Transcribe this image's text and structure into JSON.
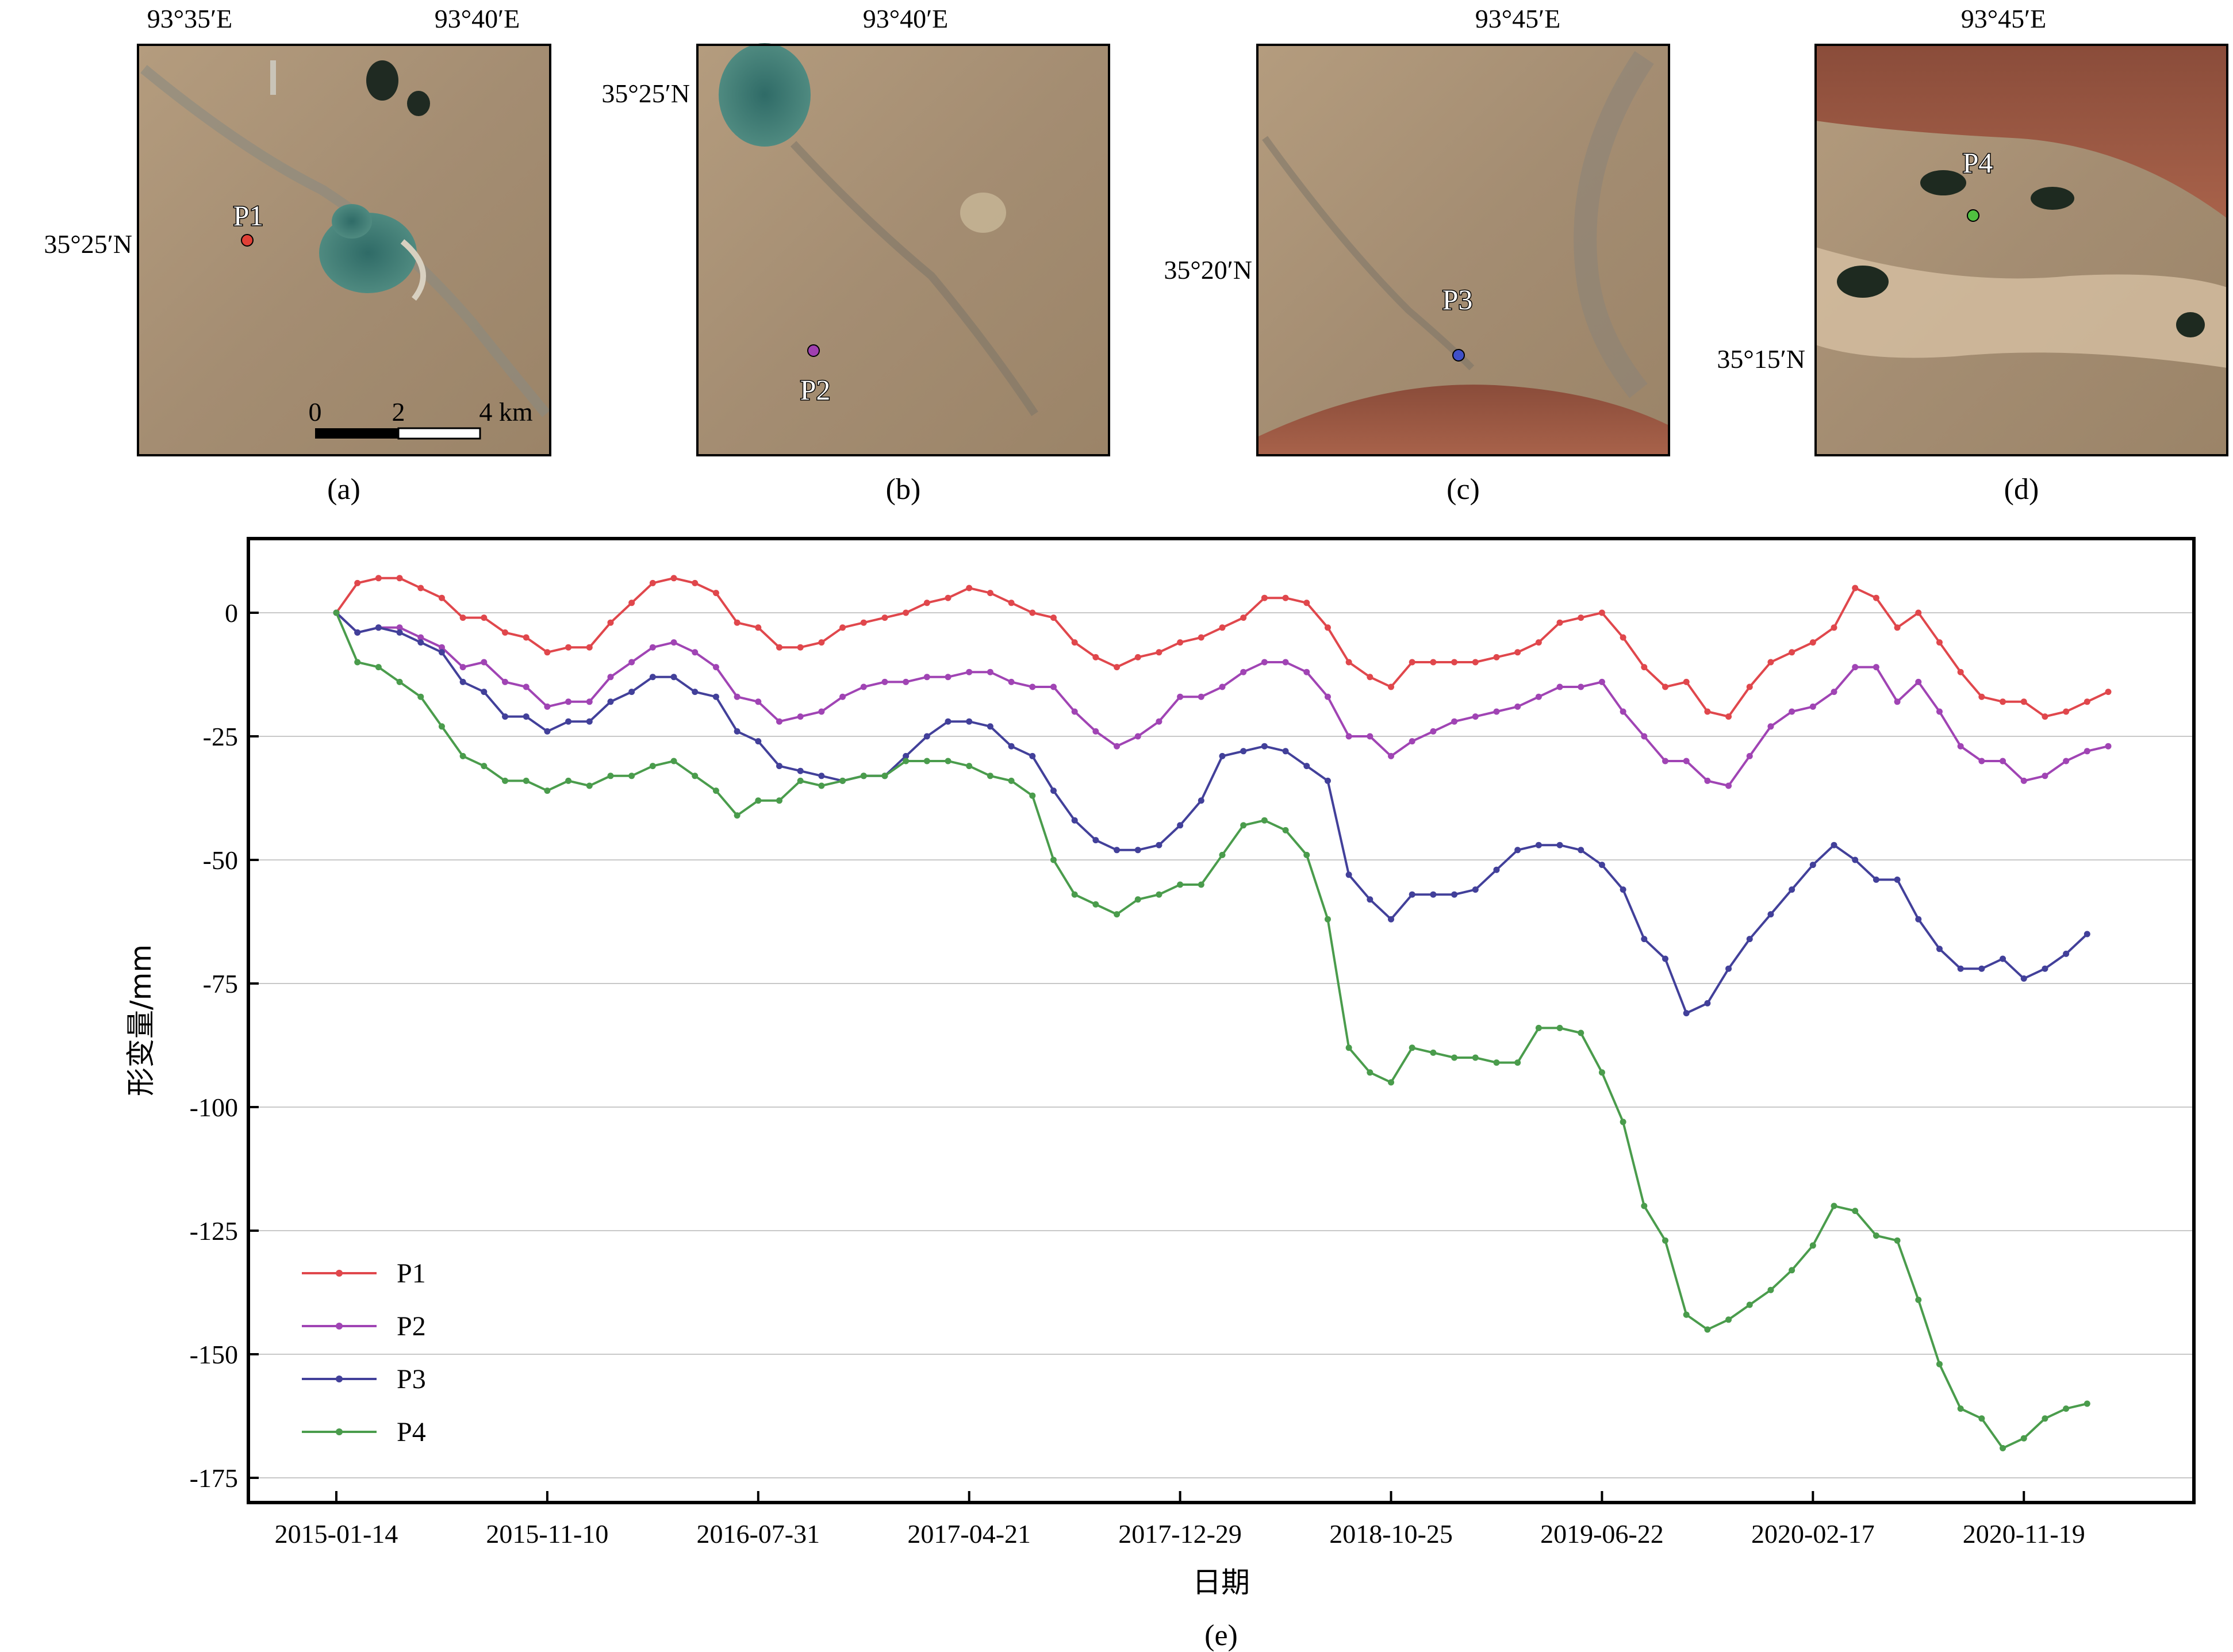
{
  "panels": [
    {
      "id": "a",
      "caption": "(a)",
      "top_labels": [
        "93°35′E",
        "93°40′E"
      ],
      "left_label": "35°25′N",
      "point": "P1",
      "point_color": "#e04036",
      "scalebar": {
        "ticks": [
          "0",
          "2",
          "4 km"
        ]
      }
    },
    {
      "id": "b",
      "caption": "(b)",
      "top_labels": [
        "93°40′E"
      ],
      "left_label": "35°25′N",
      "point": "P2",
      "point_color": "#a040b0"
    },
    {
      "id": "c",
      "caption": "(c)",
      "top_labels": [
        "93°45′E"
      ],
      "left_label": "35°20′N",
      "point": "P3",
      "point_color": "#4050c8"
    },
    {
      "id": "d",
      "caption": "(d)",
      "top_labels": [
        "93°45′E"
      ],
      "left_label": "35°15′N",
      "point": "P4",
      "point_color": "#50c040"
    }
  ],
  "chart_caption": "(e)",
  "chart_data": {
    "type": "line",
    "title": "",
    "xlabel": "日期",
    "ylabel": "形变量/mm",
    "ylim": [
      -180,
      15
    ],
    "yticks": [
      0,
      -25,
      -50,
      -75,
      -100,
      -125,
      -150,
      -175
    ],
    "xticks": [
      "2015-01-14",
      "2015-11-10",
      "2016-07-31",
      "2017-04-21",
      "2017-12-29",
      "2018-10-25",
      "2019-06-22",
      "2020-02-17",
      "2020-11-19"
    ],
    "xtick_index": [
      1,
      11,
      21,
      31,
      41,
      51,
      61,
      71,
      81
    ],
    "grid": "horizontal",
    "legend_position": "bottom-left",
    "series": [
      {
        "name": "P1",
        "color": "#e0474c",
        "values": [
          0,
          6,
          7,
          7,
          5,
          3,
          -1,
          -1,
          -4,
          -5,
          -8,
          -7,
          -7,
          -2,
          2,
          6,
          7,
          6,
          4,
          -2,
          -3,
          -7,
          -7,
          -6,
          -3,
          -2,
          -1,
          0,
          2,
          3,
          5,
          4,
          2,
          0,
          -1,
          -6,
          -9,
          -11,
          -9,
          -8,
          -6,
          -5,
          -3,
          -1,
          3,
          3,
          2,
          -3,
          -10,
          -13,
          -15,
          -10,
          -10,
          -10,
          -10,
          -9,
          -8,
          -6,
          -2,
          -1,
          0,
          -5,
          -11,
          -15,
          -14,
          -20,
          -21,
          -15,
          -10,
          -8,
          -6,
          -3,
          5,
          3,
          -3,
          0,
          -6,
          -12,
          -17,
          -18,
          -18,
          -21,
          -20,
          -18,
          -16
        ]
      },
      {
        "name": "P2",
        "color": "#a044b4",
        "values": [
          0,
          -4,
          -3,
          -3,
          -5,
          -7,
          -11,
          -10,
          -14,
          -15,
          -19,
          -18,
          -18,
          -13,
          -10,
          -7,
          -6,
          -8,
          -11,
          -17,
          -18,
          -22,
          -21,
          -20,
          -17,
          -15,
          -14,
          -14,
          -13,
          -13,
          -12,
          -12,
          -14,
          -15,
          -15,
          -20,
          -24,
          -27,
          -25,
          -22,
          -17,
          -17,
          -15,
          -12,
          -10,
          -10,
          -12,
          -17,
          -25,
          -25,
          -29,
          -26,
          -24,
          -22,
          -21,
          -20,
          -19,
          -17,
          -15,
          -15,
          -14,
          -20,
          -25,
          -30,
          -30,
          -34,
          -35,
          -29,
          -23,
          -20,
          -19,
          -16,
          -11,
          -11,
          -18,
          -14,
          -20,
          -27,
          -30,
          -30,
          -34,
          -33,
          -30,
          -28,
          -27
        ]
      },
      {
        "name": "P3",
        "color": "#42409a",
        "values": [
          0,
          -4,
          -3,
          -4,
          -6,
          -8,
          -14,
          -16,
          -21,
          -21,
          -24,
          -22,
          -22,
          -18,
          -16,
          -13,
          -13,
          -16,
          -17,
          -24,
          -26,
          -31,
          -32,
          -33,
          -34,
          -33,
          -33,
          -29,
          -25,
          -22,
          -22,
          -23,
          -27,
          -29,
          -36,
          -42,
          -46,
          -48,
          -48,
          -47,
          -43,
          -38,
          -29,
          -28,
          -27,
          -28,
          -31,
          -34,
          -53,
          -58,
          -62,
          -57,
          -57,
          -57,
          -56,
          -52,
          -48,
          -47,
          -47,
          -48,
          -51,
          -56,
          -66,
          -70,
          -81,
          -79,
          -72,
          -66,
          -61,
          -56,
          -51,
          -47,
          -50,
          -54,
          -54,
          -62,
          -68,
          -72,
          -72,
          -70,
          -74,
          -72,
          -69,
          -65
        ]
      },
      {
        "name": "P4",
        "color": "#4a9c4c",
        "values": [
          0,
          -10,
          -11,
          -14,
          -17,
          -23,
          -29,
          -31,
          -34,
          -34,
          -36,
          -34,
          -35,
          -33,
          -33,
          -31,
          -30,
          -33,
          -36,
          -41,
          -38,
          -38,
          -34,
          -35,
          -34,
          -33,
          -33,
          -30,
          -30,
          -30,
          -31,
          -33,
          -34,
          -37,
          -50,
          -57,
          -59,
          -61,
          -58,
          -57,
          -55,
          -55,
          -49,
          -43,
          -42,
          -44,
          -49,
          -62,
          -88,
          -93,
          -95,
          -88,
          -89,
          -90,
          -90,
          -91,
          -91,
          -84,
          -84,
          -85,
          -93,
          -103,
          -120,
          -127,
          -142,
          -145,
          -143,
          -140,
          -137,
          -133,
          -128,
          -120,
          -121,
          -126,
          -127,
          -139,
          -152,
          -161,
          -163,
          -169,
          -167,
          -163,
          -161,
          -160
        ]
      }
    ]
  }
}
